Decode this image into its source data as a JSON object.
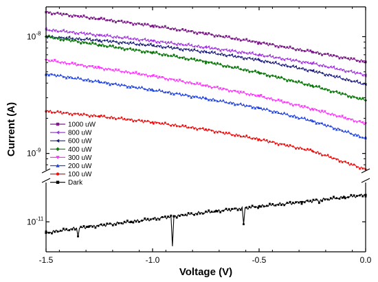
{
  "chart_data": {
    "type": "line",
    "xlabel": "Voltage (V)",
    "ylabel": "Current (A)",
    "x_ticks": [
      {
        "value": -1.5,
        "label": "-1.5"
      },
      {
        "value": -1.0,
        "label": "-1.0"
      },
      {
        "value": -0.5,
        "label": "-0.5"
      },
      {
        "value": 0.0,
        "label": "0.0"
      }
    ],
    "y_tick_labels": [
      {
        "value": 1e-08,
        "base": "10",
        "exp": "-8"
      },
      {
        "value": 1e-09,
        "base": "10",
        "exp": "-9"
      },
      {
        "value": 1e-11,
        "base": "10",
        "exp": "-11"
      }
    ],
    "xlim": [
      -1.5,
      0.0
    ],
    "y_scale": "log",
    "y_axis_break": true,
    "ylim_upper": [
      7e-10,
      1.8e-08
    ],
    "ylim_lower": [
      6e-12,
      2e-11
    ],
    "grid": false,
    "legend_position": "bottom-left",
    "series": [
      {
        "name": "1000 uW",
        "color": "#7b1a88",
        "marker": "square",
        "x": [
          -1.5,
          -1.25,
          -1.0,
          -0.75,
          -0.5,
          -0.25,
          0.0
        ],
        "y": [
          1.62e-08,
          1.42e-08,
          1.24e-08,
          1.06e-08,
          8.9e-09,
          7.4e-09,
          6.1e-09
        ]
      },
      {
        "name": "800 uW",
        "color": "#a335e0",
        "marker": "triangle-left",
        "x": [
          -1.5,
          -1.25,
          -1.0,
          -0.75,
          -0.5,
          -0.25,
          0.0
        ],
        "y": [
          1.15e-08,
          1.03e-08,
          9.2e-09,
          8.1e-09,
          7e-09,
          5.9e-09,
          4.7e-09
        ]
      },
      {
        "name": "600 uW",
        "color": "#1f1f7a",
        "marker": "triangle-left",
        "x": [
          -1.5,
          -1.25,
          -1.0,
          -0.75,
          -0.5,
          -0.25,
          0.0
        ],
        "y": [
          1e-08,
          9.3e-09,
          8.4e-09,
          7.4e-09,
          6.3e-09,
          5.1e-09,
          3.9e-09
        ]
      },
      {
        "name": "400 uW",
        "color": "#0e7a0e",
        "marker": "diamond",
        "x": [
          -1.5,
          -1.25,
          -1.0,
          -0.75,
          -0.5,
          -0.25,
          0.0
        ],
        "y": [
          1e-08,
          8.5e-09,
          7.3e-09,
          6.1e-09,
          4.9e-09,
          3.8e-09,
          2.85e-09
        ]
      },
      {
        "name": "300 uW",
        "color": "#ff33ff",
        "marker": "triangle-down",
        "x": [
          -1.5,
          -1.25,
          -1.0,
          -0.75,
          -0.5,
          -0.25,
          0.0
        ],
        "y": [
          6.3e-09,
          5.4e-09,
          4.6e-09,
          3.8e-09,
          3.1e-09,
          2.4e-09,
          1.8e-09
        ]
      },
      {
        "name": "200 uW",
        "color": "#2244dd",
        "marker": "triangle-up",
        "x": [
          -1.5,
          -1.25,
          -1.0,
          -0.75,
          -0.5,
          -0.25,
          0.0
        ],
        "y": [
          4.8e-09,
          4.1e-09,
          3.5e-09,
          2.95e-09,
          2.45e-09,
          1.9e-09,
          1.35e-09
        ]
      },
      {
        "name": "100 uW",
        "color": "#ee1111",
        "marker": "circle",
        "x": [
          -1.5,
          -1.25,
          -1.0,
          -0.75,
          -0.5,
          -0.25,
          0.0
        ],
        "y": [
          2.3e-09,
          2.08e-09,
          1.85e-09,
          1.6e-09,
          1.32e-09,
          1.05e-09,
          7.3e-10
        ]
      },
      {
        "name": "Dark",
        "color": "#000000",
        "marker": "square",
        "x": [
          -1.5,
          -1.3,
          -1.1,
          -0.9,
          -0.7,
          -0.5,
          -0.3,
          -0.1,
          0.0
        ],
        "y": [
          8.3e-12,
          9.2e-12,
          1e-11,
          1.1e-11,
          1.2e-11,
          1.3e-11,
          1.4e-11,
          1.52e-11,
          1.58e-11
        ]
      }
    ],
    "dark_dips": [
      {
        "x": -1.35,
        "y": 7.8e-12
      },
      {
        "x": -0.91,
        "y": 6.6e-12
      },
      {
        "x": -0.57,
        "y": 9.6e-12
      },
      {
        "x": -0.22,
        "y": 1.38e-11
      }
    ]
  }
}
